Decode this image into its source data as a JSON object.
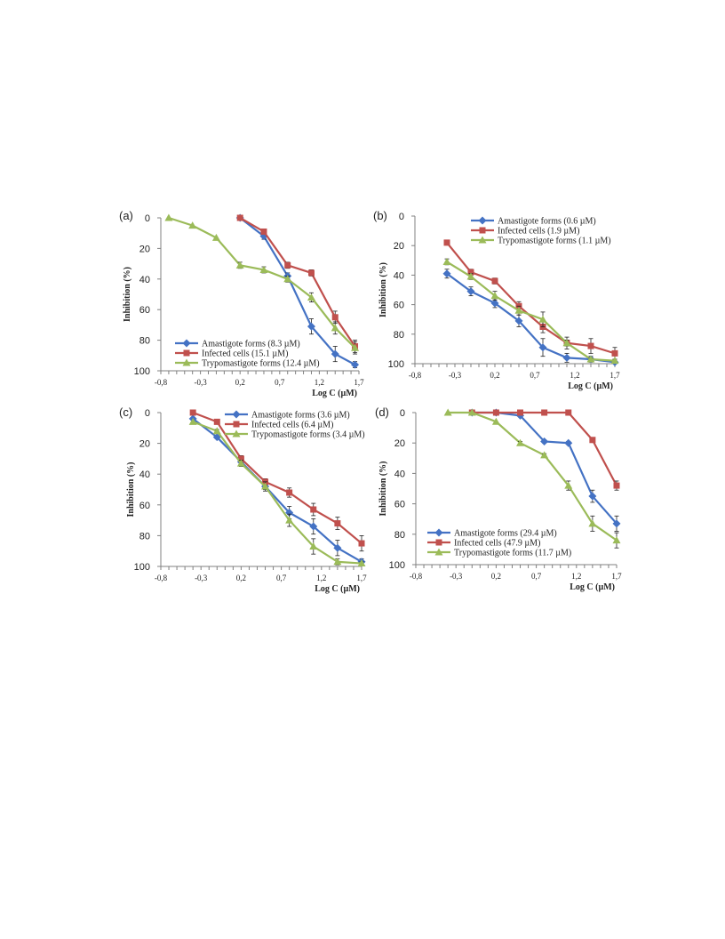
{
  "chart_data": [
    {
      "panel": "(a)",
      "type": "line",
      "xlabel": "Log C (µM)",
      "ylabel": "Inhibition (%)",
      "xlim": [
        -0.8,
        1.7
      ],
      "ylim": [
        0,
        100
      ],
      "y_reversed": true,
      "x_ticks": [
        "-0,8",
        "-0,3",
        "0,2",
        "0,7",
        "1,2",
        "1,7"
      ],
      "y_ticks": [
        "0",
        "20",
        "40",
        "60",
        "80",
        "100"
      ],
      "legend_position": "bottom-left",
      "series": [
        {
          "name": "Amastigote forms (8.3 µM)",
          "color": "#4472C4",
          "marker": "diamond",
          "x": [
            0.2,
            0.5,
            0.8,
            1.1,
            1.4,
            1.65
          ],
          "y": [
            0,
            12,
            38,
            71,
            89,
            96
          ],
          "err": [
            0,
            2,
            2,
            5,
            5,
            2
          ]
        },
        {
          "name": "Infected cells (15.1 µM)",
          "color": "#C0504D",
          "marker": "square",
          "x": [
            0.2,
            0.5,
            0.8,
            1.1,
            1.4,
            1.65
          ],
          "y": [
            0,
            9,
            31,
            36,
            65,
            84
          ],
          "err": [
            0,
            1,
            2,
            2,
            4,
            4
          ]
        },
        {
          "name": "Trypomastigote forms (12.4 µM)",
          "color": "#9BBB59",
          "marker": "triangle",
          "x": [
            -0.7,
            -0.4,
            -0.1,
            0.2,
            0.5,
            0.8,
            1.1,
            1.4,
            1.65
          ],
          "y": [
            0,
            5,
            13,
            31,
            34,
            40,
            52,
            72,
            85
          ],
          "err": [
            0,
            0,
            0,
            2,
            2,
            2,
            3,
            4,
            4
          ]
        }
      ]
    },
    {
      "panel": "(b)",
      "type": "line",
      "xlabel": "Log C (µM)",
      "ylabel": "Inhibition (%)",
      "xlim": [
        -0.8,
        1.7
      ],
      "ylim": [
        0,
        100
      ],
      "y_reversed": true,
      "x_ticks": [
        "-0,8",
        "-0,3",
        "0,2",
        "0,7",
        "1,2",
        "1,7"
      ],
      "y_ticks": [
        "0",
        "20",
        "40",
        "60",
        "80",
        "100"
      ],
      "legend_position": "top-right",
      "series": [
        {
          "name": "Amastigote forms (0.6 µM)",
          "color": "#4472C4",
          "marker": "diamond",
          "x": [
            -0.4,
            -0.1,
            0.2,
            0.5,
            0.8,
            1.1,
            1.4,
            1.7
          ],
          "y": [
            39,
            51,
            59,
            71,
            89,
            96,
            97,
            99
          ],
          "err": [
            3,
            3,
            3,
            4,
            6,
            3,
            2,
            1
          ]
        },
        {
          "name": "Infected cells (1.9 µM)",
          "color": "#C0504D",
          "marker": "square",
          "x": [
            -0.4,
            -0.1,
            0.2,
            0.5,
            0.8,
            1.1,
            1.4,
            1.7
          ],
          "y": [
            18,
            38,
            44,
            61,
            75,
            86,
            88,
            93
          ],
          "err": [
            0,
            2,
            2,
            3,
            4,
            4,
            5,
            4
          ]
        },
        {
          "name": "Trypomastigote forms (1.1 µM)",
          "color": "#9BBB59",
          "marker": "triangle",
          "x": [
            -0.4,
            -0.1,
            0.2,
            0.5,
            0.8,
            1.1,
            1.4,
            1.7
          ],
          "y": [
            31,
            41,
            54,
            64,
            70,
            86,
            97,
            98
          ],
          "err": [
            2,
            2,
            3,
            3,
            5,
            2,
            1,
            1
          ]
        }
      ]
    },
    {
      "panel": "(c)",
      "type": "line",
      "xlabel": "Log C (µM)",
      "ylabel": "Inhibition (%)",
      "xlim": [
        -0.8,
        1.7
      ],
      "ylim": [
        0,
        100
      ],
      "y_reversed": true,
      "x_ticks": [
        "-0,8",
        "-0,3",
        "0,2",
        "0,7",
        "1,2",
        "1,7"
      ],
      "y_ticks": [
        "0",
        "20",
        "40",
        "60",
        "80",
        "100"
      ],
      "legend_position": "top-right",
      "series": [
        {
          "name": "Amastigote forms (3.6 µM)",
          "color": "#4472C4",
          "marker": "diamond",
          "x": [
            -0.4,
            -0.1,
            0.2,
            0.5,
            0.8,
            1.1,
            1.4,
            1.7
          ],
          "y": [
            4,
            16,
            32,
            48,
            65,
            74,
            88,
            97
          ],
          "err": [
            0,
            1,
            2,
            2,
            4,
            5,
            5,
            2
          ]
        },
        {
          "name": "Infected cells (6.4 µM)",
          "color": "#C0504D",
          "marker": "square",
          "x": [
            -0.4,
            -0.1,
            0.2,
            0.5,
            0.8,
            1.1,
            1.4,
            1.7
          ],
          "y": [
            0,
            6,
            30,
            45,
            52,
            63,
            72,
            85
          ],
          "err": [
            0,
            0,
            2,
            2,
            3,
            4,
            4,
            5
          ]
        },
        {
          "name": "Trypomastigote forms (3.4 µM)",
          "color": "#9BBB59",
          "marker": "triangle",
          "x": [
            -0.4,
            -0.1,
            0.2,
            0.5,
            0.8,
            1.1,
            1.4,
            1.7
          ],
          "y": [
            6,
            12,
            33,
            48,
            70,
            87,
            97,
            98
          ],
          "err": [
            0,
            1,
            2,
            3,
            4,
            5,
            2,
            1
          ]
        }
      ]
    },
    {
      "panel": "(d)",
      "type": "line",
      "xlabel": "Log C (µM)",
      "ylabel": "Inhibition (%)",
      "xlim": [
        -0.8,
        1.7
      ],
      "ylim": [
        0,
        100
      ],
      "y_reversed": true,
      "x_ticks": [
        "-0,8",
        "-0,3",
        "0,2",
        "0,7",
        "1,2",
        "1,7"
      ],
      "y_ticks": [
        "0",
        "20",
        "40",
        "60",
        "80",
        "100"
      ],
      "legend_position": "bottom-left",
      "series": [
        {
          "name": "Amastigote forms (29.4 µM)",
          "color": "#4472C4",
          "marker": "diamond",
          "x": [
            -0.1,
            0.2,
            0.5,
            0.8,
            1.1,
            1.4,
            1.7
          ],
          "y": [
            0,
            0,
            2,
            19,
            20,
            55,
            73
          ],
          "err": [
            0,
            0,
            0,
            1,
            1,
            4,
            5
          ]
        },
        {
          "name": "Infected cells (47.9 µM)",
          "color": "#C0504D",
          "marker": "square",
          "x": [
            -0.1,
            0.2,
            0.5,
            0.8,
            1.1,
            1.4,
            1.7
          ],
          "y": [
            0,
            0,
            0,
            0,
            0,
            18,
            48
          ],
          "err": [
            0,
            0,
            0,
            0,
            0,
            1,
            3
          ]
        },
        {
          "name": "Trypomastigote forms (11.7 µM)",
          "color": "#9BBB59",
          "marker": "triangle",
          "x": [
            -0.4,
            -0.1,
            0.2,
            0.5,
            0.8,
            1.1,
            1.4,
            1.7
          ],
          "y": [
            0,
            0,
            6,
            20,
            28,
            48,
            73,
            84
          ],
          "err": [
            0,
            0,
            0,
            1,
            1,
            3,
            5,
            5
          ]
        }
      ]
    }
  ]
}
